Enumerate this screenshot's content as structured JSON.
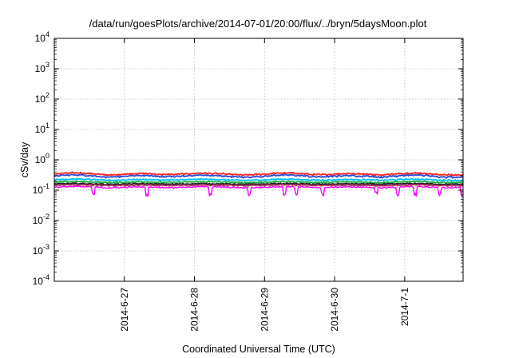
{
  "chart_data": {
    "type": "line",
    "title": "/data/run/goesPlots/archive/2014-07-01/20:00/flux/../bryn/5daysMoon.plot",
    "xlabel": "Coordinated Universal Time (UTC)",
    "ylabel": "cSv/day",
    "yscale": "log",
    "ylim": [
      0.0001,
      10000
    ],
    "y_ticks": [
      {
        "base": "10",
        "exp": "4"
      },
      {
        "base": "10",
        "exp": "3"
      },
      {
        "base": "10",
        "exp": "2"
      },
      {
        "base": "10",
        "exp": "1"
      },
      {
        "base": "10",
        "exp": "0"
      },
      {
        "base": "10",
        "exp": "-1"
      },
      {
        "base": "10",
        "exp": "-2"
      },
      {
        "base": "10",
        "exp": "-3"
      },
      {
        "base": "10",
        "exp": "-4"
      }
    ],
    "xlim": [
      "2014-06-26 00:00",
      "2014-07-01 20:00"
    ],
    "x_ticks": [
      "2014-6-27",
      "2014-6-28",
      "2014-6-29",
      "2014-6-30",
      "2014-7-1"
    ],
    "grid": true,
    "legend": "none",
    "series": [
      {
        "color": "#ff2020",
        "base": 0.34,
        "amp": 0.2,
        "spikes": false
      },
      {
        "color": "#2a4bd7",
        "base": 0.29,
        "amp": 0.22,
        "spikes": false
      },
      {
        "color": "#00c0ff",
        "base": 0.22,
        "amp": 0.12,
        "spikes": false
      },
      {
        "color": "#20b040",
        "base": 0.185,
        "amp": 0.1,
        "spikes": false
      },
      {
        "color": "#202020",
        "base": 0.16,
        "amp": 0.08,
        "spikes": false
      },
      {
        "color": "#b03060",
        "base": 0.145,
        "amp": 0.08,
        "spikes": false
      },
      {
        "color": "#ff00ff",
        "base": 0.125,
        "amp": 0.12,
        "spikes": true
      }
    ]
  }
}
